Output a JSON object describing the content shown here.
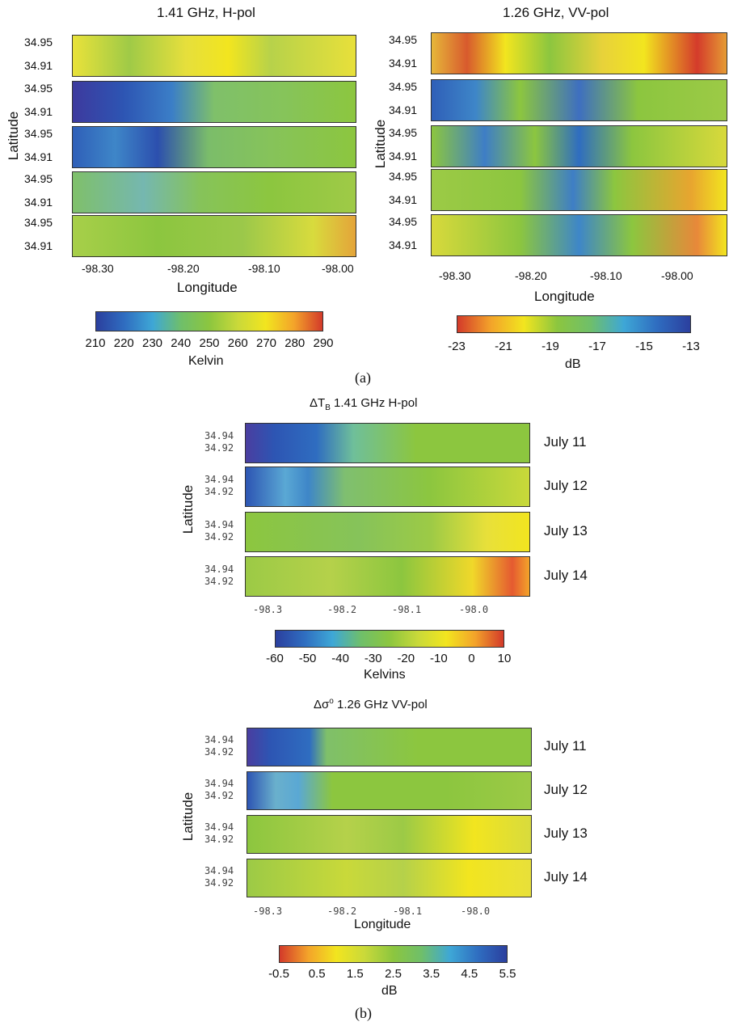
{
  "chart_data": [
    {
      "type": "heatmap",
      "title": "1.41 GHz, H-pol",
      "xlabel": "Longitude",
      "ylabel": "Latitude",
      "x_ticks": [
        "-98.30",
        "-98.20",
        "-98.10",
        "-98.00"
      ],
      "y_ticks": [
        "34.95",
        "34.91"
      ],
      "panels": 5,
      "colorbar": {
        "label": "Kelvin",
        "ticks": [
          "210",
          "220",
          "230",
          "240",
          "250",
          "260",
          "270",
          "280",
          "290"
        ],
        "range": [
          210,
          290
        ],
        "colors": [
          "#2b3f9e",
          "#2f6dc0",
          "#3ea7d6",
          "#6fbf6a",
          "#8cc63f",
          "#c9d93a",
          "#f2e51f",
          "#f3a32a",
          "#d33a2a"
        ]
      }
    },
    {
      "type": "heatmap",
      "title": "1.26 GHz, VV-pol",
      "xlabel": "Longitude",
      "ylabel": "Latitude",
      "x_ticks": [
        "-98.30",
        "-98.20",
        "-98.10",
        "-98.00"
      ],
      "y_ticks": [
        "34.95",
        "34.91"
      ],
      "panels": 5,
      "colorbar": {
        "label": "dB",
        "ticks": [
          "-23",
          "-21",
          "-19",
          "-17",
          "-15",
          "-13"
        ],
        "range": [
          -23,
          -13
        ],
        "colors": [
          "#d33a2a",
          "#f3a32a",
          "#f2e51f",
          "#8cc63f",
          "#6fbf6a",
          "#3ea7d6",
          "#2f6dc0",
          "#2b3f9e"
        ]
      }
    },
    {
      "type": "heatmap",
      "title": "1.41 GHz  H-pol",
      "title_prefix": "ΔT",
      "title_sub": "B",
      "ylabel": "Latitude",
      "x_ticks": [
        "-98.3",
        "-98.2",
        "-98.1",
        "-98.0"
      ],
      "y_ticks": [
        "34.94",
        "34.92"
      ],
      "dates": [
        "July 11",
        "July 12",
        "July 13",
        "July 14"
      ],
      "colorbar": {
        "label": "Kelvins",
        "ticks": [
          "-60",
          "-50",
          "-40",
          "-30",
          "-20",
          "-10",
          "0",
          "10"
        ],
        "range": [
          -60,
          10
        ],
        "colors": [
          "#2b3f9e",
          "#2f6dc0",
          "#3ea7d6",
          "#6fbf6a",
          "#8cc63f",
          "#c9d93a",
          "#f2e51f",
          "#f3a32a",
          "#d33a2a"
        ]
      }
    },
    {
      "type": "heatmap",
      "title": "1.26 GHz  VV-pol",
      "title_prefix": "Δσ",
      "title_sup": "o",
      "xlabel": "Longitude",
      "ylabel": "Latitude",
      "x_ticks": [
        "-98.3",
        "-98.2",
        "-98.1",
        "-98.0"
      ],
      "y_ticks": [
        "34.94",
        "34.92"
      ],
      "dates": [
        "July 11",
        "July 12",
        "July 13",
        "July 14"
      ],
      "colorbar": {
        "label": "dB",
        "ticks": [
          "-0.5",
          "0.5",
          "1.5",
          "2.5",
          "3.5",
          "4.5",
          "5.5"
        ],
        "range": [
          -0.5,
          5.5
        ],
        "colors": [
          "#d33a2a",
          "#f3a32a",
          "#f2e51f",
          "#c9d93a",
          "#8cc63f",
          "#6fbf6a",
          "#3ea7d6",
          "#2f6dc0",
          "#2b3f9e"
        ]
      }
    }
  ],
  "captions": {
    "a": "(a)",
    "b": "(b)"
  }
}
